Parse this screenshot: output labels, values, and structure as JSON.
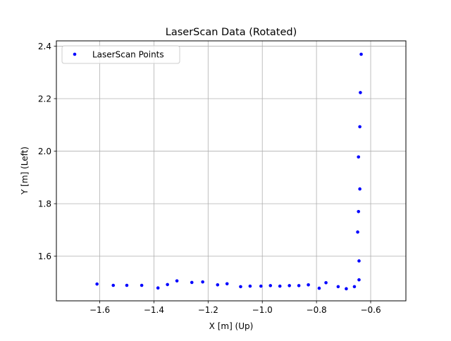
{
  "chart_data": {
    "type": "scatter",
    "title": "LaserScan Data (Rotated)",
    "xlabel": "X [m] (Up)",
    "ylabel": "Y [m] (Left)",
    "xlim": [
      -1.76,
      -0.47
    ],
    "ylim": [
      1.43,
      2.42
    ],
    "xticks": [
      -1.6,
      -1.4,
      -1.2,
      -1.0,
      -0.8,
      -0.6
    ],
    "xtick_labels": [
      "−1.6",
      "−1.4",
      "−1.2",
      "−1.0",
      "−0.8",
      "−0.6"
    ],
    "yticks": [
      1.6,
      1.8,
      2.0,
      2.2,
      2.4
    ],
    "ytick_labels": [
      "1.6",
      "1.8",
      "2.0",
      "2.2",
      "2.4"
    ],
    "grid": true,
    "legend_position": "top-left",
    "series": [
      {
        "name": "LaserScan Points",
        "color": "#0000ff",
        "marker": "circle",
        "points": [
          [
            -1.61,
            1.494
          ],
          [
            -1.55,
            1.489
          ],
          [
            -1.5,
            1.489
          ],
          [
            -1.445,
            1.489
          ],
          [
            -1.385,
            1.479
          ],
          [
            -1.35,
            1.492
          ],
          [
            -1.315,
            1.506
          ],
          [
            -1.26,
            1.5
          ],
          [
            -1.22,
            1.502
          ],
          [
            -1.165,
            1.491
          ],
          [
            -1.13,
            1.495
          ],
          [
            -1.08,
            1.484
          ],
          [
            -1.045,
            1.486
          ],
          [
            -1.005,
            1.486
          ],
          [
            -0.97,
            1.488
          ],
          [
            -0.935,
            1.486
          ],
          [
            -0.9,
            1.488
          ],
          [
            -0.865,
            1.488
          ],
          [
            -0.83,
            1.491
          ],
          [
            -0.79,
            1.478
          ],
          [
            -0.765,
            1.499
          ],
          [
            -0.72,
            1.484
          ],
          [
            -0.69,
            1.476
          ],
          [
            -0.66,
            1.484
          ],
          [
            -0.643,
            1.51
          ],
          [
            -0.643,
            1.582
          ],
          [
            -0.648,
            1.692
          ],
          [
            -0.645,
            1.77
          ],
          [
            -0.64,
            1.856
          ],
          [
            -0.645,
            1.978
          ],
          [
            -0.64,
            2.093
          ],
          [
            -0.638,
            2.223
          ],
          [
            -0.635,
            2.369
          ]
        ]
      }
    ]
  }
}
